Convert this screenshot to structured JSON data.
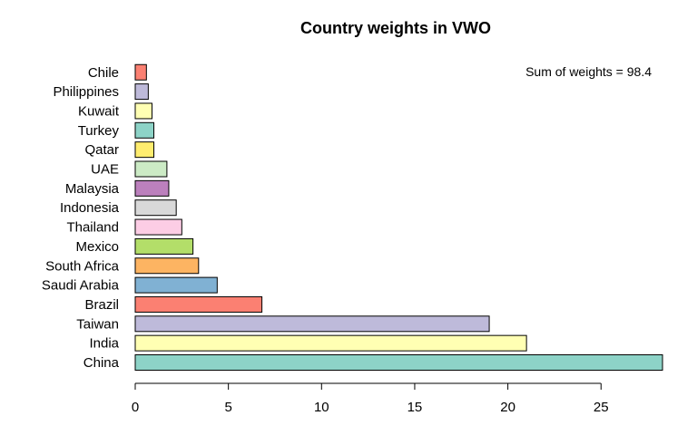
{
  "chart_data": {
    "type": "bar",
    "orientation": "horizontal",
    "title": "Country weights in VWO",
    "xlabel": "",
    "ylabel": "",
    "annotation": "Sum of weights = 98.4",
    "categories": [
      "China",
      "India",
      "Taiwan",
      "Brazil",
      "Saudi Arabia",
      "South Africa",
      "Mexico",
      "Thailand",
      "Indonesia",
      "Malaysia",
      "UAE",
      "Qatar",
      "Turkey",
      "Kuwait",
      "Philippines",
      "Chile"
    ],
    "values": [
      28.3,
      21.0,
      19.0,
      6.8,
      4.4,
      3.4,
      3.1,
      2.5,
      2.2,
      1.8,
      1.7,
      1.0,
      1.0,
      0.9,
      0.7,
      0.6
    ],
    "colors": [
      "#8DD3C7",
      "#FFFFB3",
      "#BEBADA",
      "#FB8072",
      "#80B1D3",
      "#FDB462",
      "#B3DE69",
      "#FCCDE5",
      "#D9D9D9",
      "#BC80BD",
      "#CCEBC5",
      "#FFED6F",
      "#8DD3C7",
      "#FFFFB3",
      "#BEBADA",
      "#FB8072"
    ],
    "xticks": [
      0,
      5,
      10,
      15,
      20,
      25
    ],
    "xlim": [
      0,
      28.3
    ],
    "grid": false
  }
}
